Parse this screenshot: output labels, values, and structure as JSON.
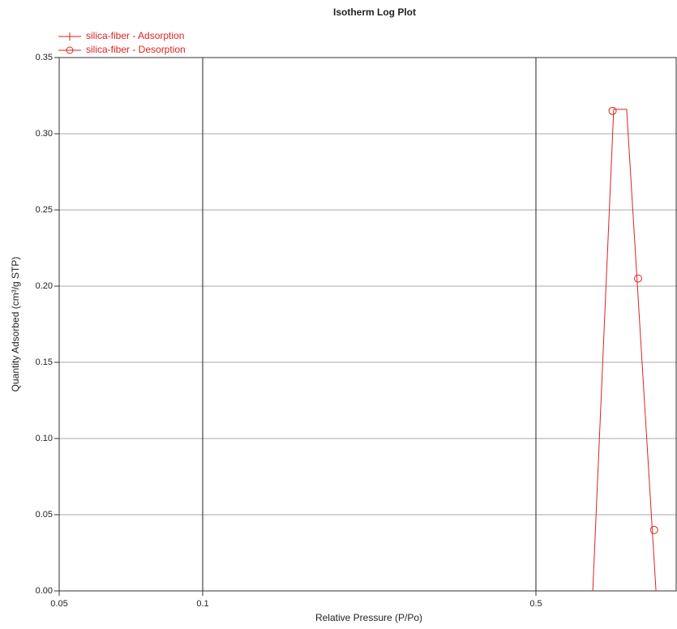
{
  "chart_data": {
    "type": "line",
    "title": "Isotherm Log Plot",
    "x_label": "Relative Pressure (P/Po)",
    "y_label": "Quantity Adsorbed (cm³/g STP)",
    "x_scale": "log",
    "grid": true,
    "xlim": [
      0.05,
      1
    ],
    "xticks": [
      0.05,
      0.1,
      0.5
    ],
    "ylim": [
      0,
      0.35
    ],
    "yticks": [
      {
        "value": 0,
        "label": "0.00"
      },
      0.05,
      {
        "value": 0.1,
        "label": "0.10"
      },
      0.15,
      {
        "value": 0.2,
        "label": "0.20"
      },
      0.25,
      {
        "value": 0.3,
        "label": "0.30"
      },
      0.35
    ],
    "series": [
      {
        "name": "silica-fiber - Adsorption",
        "color": "#dd2222",
        "marker": "plus",
        "x": [
          0.658,
          0.728,
          0.775,
          0.893
        ],
        "values": [
          0,
          0.316,
          0.316,
          0
        ]
      },
      {
        "name": "silica-fiber - Desorption",
        "color": "#dd2222",
        "marker": "circle",
        "x": [
          0.724,
          0.819,
          0.885
        ],
        "values": [
          0.315,
          0.205,
          0.04
        ]
      }
    ]
  }
}
